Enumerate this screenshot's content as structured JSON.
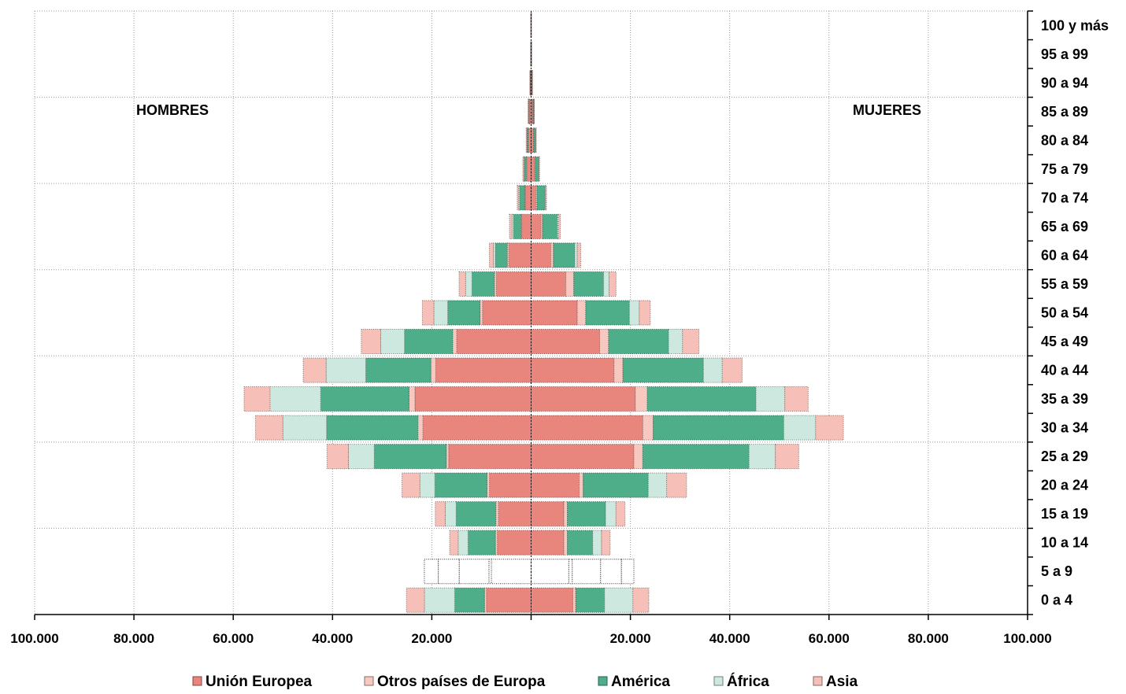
{
  "chart_data": {
    "type": "bar",
    "orientation": "horizontal-pyramid",
    "left_label": "HOMBRES",
    "right_label": "MUJERES",
    "categories": [
      "0 a 4",
      "5 a 9",
      "10 a 14",
      "15 a 19",
      "20 a 24",
      "25 a 29",
      "30 a 34",
      "35 a 39",
      "40 a 44",
      "45 a 49",
      "50 a 54",
      "55 a 59",
      "60 a 64",
      "65 a 69",
      "70 a 74",
      "75 a 79",
      "80 a 84",
      "85 a 89",
      "90 a 94",
      "95 a 99",
      "100 y más"
    ],
    "x_ticks": [
      "100.000",
      "80.000",
      "60.000",
      "40.000",
      "20.000",
      "",
      "20.000",
      "40.000",
      "60.000",
      "80.000",
      "100.000"
    ],
    "xlim": [
      -100000,
      100000
    ],
    "grid": true,
    "legend_position": "bottom",
    "series": [
      {
        "name": "Unión Europea",
        "color": "#e8857c",
        "hombres": [
          9000,
          8000,
          6800,
          6600,
          8400,
          16600,
          21800,
          23400,
          19200,
          15000,
          9800,
          7000,
          4500,
          1900,
          1200,
          900,
          600,
          400,
          150,
          60,
          20
        ],
        "mujeres": [
          8400,
          7600,
          6600,
          6600,
          9700,
          20700,
          22500,
          21000,
          16700,
          13800,
          9300,
          7000,
          4000,
          2000,
          1000,
          750,
          500,
          350,
          150,
          60,
          20
        ]
      },
      {
        "name": "Otros países de Europa",
        "color": "#f7c8c0",
        "hombres": [
          400,
          500,
          400,
          500,
          500,
          500,
          1000,
          1200,
          1000,
          800,
          500,
          400,
          300,
          150,
          100,
          70,
          40,
          30,
          10,
          5,
          2
        ],
        "mujeres": [
          600,
          700,
          700,
          700,
          800,
          1800,
          2100,
          2400,
          1800,
          1800,
          1700,
          1600,
          500,
          300,
          200,
          100,
          50,
          40,
          10,
          5,
          2
        ]
      },
      {
        "name": "América",
        "color": "#4fae8a",
        "hombres": [
          6000,
          6000,
          5500,
          8000,
          10500,
          14500,
          18400,
          17800,
          13100,
          9700,
          6500,
          4500,
          2400,
          1500,
          1000,
          400,
          200,
          100,
          40,
          10,
          3
        ],
        "mujeres": [
          5800,
          5700,
          5100,
          7700,
          13100,
          21400,
          26300,
          21900,
          16200,
          12100,
          8800,
          6000,
          4300,
          3000,
          1600,
          700,
          400,
          200,
          80,
          20,
          5
        ]
      },
      {
        "name": "África",
        "color": "#cde9df",
        "hombres": [
          6100,
          4200,
          2000,
          2200,
          3000,
          5200,
          8800,
          10200,
          8000,
          4800,
          2800,
          1300,
          400,
          300,
          200,
          100,
          50,
          20,
          10,
          2,
          1
        ],
        "mujeres": [
          5700,
          4200,
          1800,
          2100,
          3700,
          5300,
          6400,
          5800,
          3800,
          2800,
          2000,
          1100,
          500,
          200,
          100,
          50,
          30,
          10,
          5,
          2,
          1
        ]
      },
      {
        "name": "Asia",
        "color": "#f6c0b8",
        "hombres": [
          3600,
          2800,
          1700,
          2000,
          3600,
          4300,
          5500,
          5200,
          4600,
          3900,
          2300,
          1300,
          800,
          500,
          300,
          200,
          100,
          50,
          20,
          5,
          2
        ],
        "mujeres": [
          3200,
          2500,
          1700,
          1800,
          4000,
          4700,
          5600,
          4700,
          4000,
          3300,
          2200,
          1400,
          700,
          400,
          200,
          100,
          50,
          20,
          10,
          3,
          1
        ]
      }
    ]
  }
}
